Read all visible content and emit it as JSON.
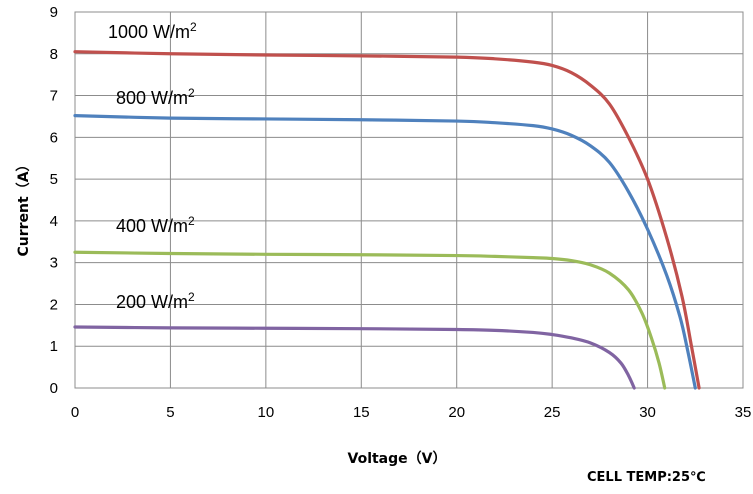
{
  "chart_data": {
    "type": "line",
    "title": "",
    "xlabel": "Voltage（V）",
    "ylabel": "Current（A）",
    "xlim": [
      0,
      35
    ],
    "ylim": [
      0,
      9
    ],
    "xticks": [
      0,
      5,
      10,
      15,
      20,
      25,
      30,
      35
    ],
    "yticks": [
      0,
      1,
      2,
      3,
      4,
      5,
      6,
      7,
      8,
      9
    ],
    "grid": true,
    "series": [
      {
        "name": "1000 W/m",
        "sup": "2",
        "color": "#c0504d",
        "x": [
          0,
          5,
          10,
          15,
          20,
          22,
          24,
          25,
          26,
          27,
          28,
          29,
          30,
          31,
          31.8,
          32.3,
          32.7
        ],
        "y": [
          8.05,
          8.0,
          7.97,
          7.95,
          7.92,
          7.88,
          7.8,
          7.72,
          7.55,
          7.25,
          6.8,
          6.0,
          5.0,
          3.6,
          2.2,
          1.0,
          0
        ]
      },
      {
        "name": "800 W/m",
        "sup": "2",
        "color": "#4f81bd",
        "x": [
          0,
          5,
          10,
          15,
          20,
          22,
          24,
          25,
          26,
          27,
          28,
          29,
          30,
          31,
          31.7,
          32.1,
          32.5
        ],
        "y": [
          6.52,
          6.46,
          6.44,
          6.42,
          6.39,
          6.35,
          6.28,
          6.2,
          6.05,
          5.8,
          5.4,
          4.7,
          3.8,
          2.7,
          1.7,
          0.9,
          0
        ]
      },
      {
        "name": "400 W/m",
        "sup": "2",
        "color": "#9bbb59",
        "x": [
          0,
          5,
          10,
          15,
          20,
          22,
          24,
          25,
          26,
          27,
          28,
          29,
          29.7,
          30.2,
          30.6,
          30.9
        ],
        "y": [
          3.25,
          3.22,
          3.2,
          3.19,
          3.17,
          3.15,
          3.12,
          3.1,
          3.05,
          2.95,
          2.75,
          2.35,
          1.8,
          1.2,
          0.6,
          0
        ]
      },
      {
        "name": "200 W/m",
        "sup": "2",
        "color": "#8064a2",
        "x": [
          0,
          5,
          10,
          15,
          20,
          22,
          24,
          25,
          26,
          27,
          28,
          28.6,
          29.0,
          29.3
        ],
        "y": [
          1.46,
          1.44,
          1.43,
          1.42,
          1.4,
          1.38,
          1.33,
          1.28,
          1.2,
          1.08,
          0.85,
          0.6,
          0.3,
          0
        ]
      }
    ],
    "annotation": "CELL TEMP:25℃"
  }
}
